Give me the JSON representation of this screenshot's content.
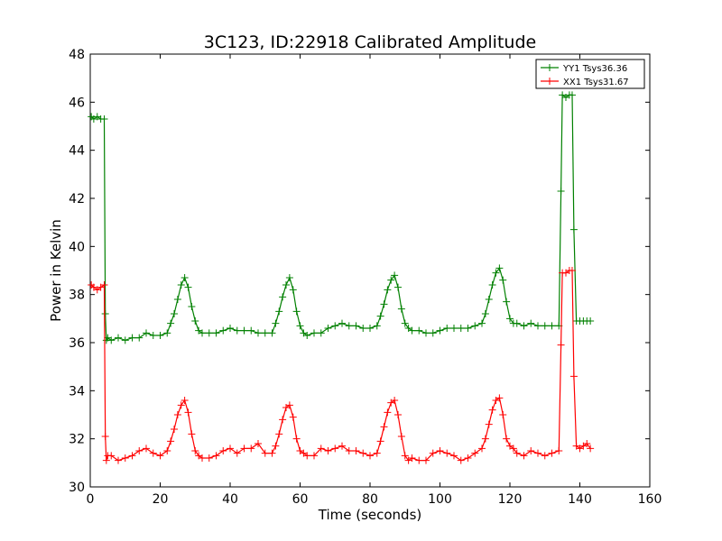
{
  "chart_data": {
    "type": "line",
    "title": "3C123, ID:22918 Calibrated Amplitude",
    "xlabel": "Time (seconds)",
    "ylabel": "Power in Kelvin",
    "xlim": [
      0,
      160
    ],
    "ylim": [
      30,
      48
    ],
    "xticks": [
      0,
      20,
      40,
      60,
      80,
      100,
      120,
      140,
      160
    ],
    "yticks": [
      30,
      32,
      34,
      36,
      38,
      40,
      42,
      44,
      46,
      48
    ],
    "grid": false,
    "legend_position": "top-right",
    "marker": "+",
    "series": [
      {
        "name": "YY1 Tsys36.36",
        "color": "#008000",
        "x": [
          0.3,
          1,
          2,
          3,
          4,
          4.3,
          4.6,
          5,
          6,
          8,
          10,
          12,
          14,
          16,
          18,
          20,
          22,
          23,
          24,
          25,
          26,
          27,
          28,
          29,
          30,
          31,
          32,
          34,
          36,
          38,
          40,
          42,
          44,
          46,
          48,
          50,
          52,
          53,
          54,
          55,
          56,
          57,
          58,
          59,
          60,
          61,
          62,
          64,
          66,
          68,
          70,
          72,
          74,
          76,
          78,
          80,
          82,
          83,
          84,
          85,
          86,
          87,
          88,
          89,
          90,
          91,
          92,
          94,
          96,
          98,
          100,
          102,
          104,
          106,
          108,
          110,
          112,
          113,
          114,
          115,
          116,
          117,
          118,
          119,
          120,
          121,
          122,
          124,
          126,
          128,
          130,
          132,
          134,
          134.6,
          135,
          136,
          137,
          137.8,
          138.3,
          139,
          140,
          141,
          142,
          143
        ],
        "values": [
          45.4,
          45.3,
          45.4,
          45.3,
          45.3,
          37.2,
          36.1,
          36.2,
          36.1,
          36.2,
          36.1,
          36.2,
          36.2,
          36.4,
          36.3,
          36.3,
          36.4,
          36.8,
          37.2,
          37.8,
          38.4,
          38.7,
          38.3,
          37.5,
          36.9,
          36.5,
          36.4,
          36.4,
          36.4,
          36.5,
          36.6,
          36.5,
          36.5,
          36.5,
          36.4,
          36.4,
          36.4,
          36.8,
          37.3,
          37.9,
          38.4,
          38.7,
          38.2,
          37.3,
          36.7,
          36.4,
          36.3,
          36.4,
          36.4,
          36.6,
          36.7,
          36.8,
          36.7,
          36.7,
          36.6,
          36.6,
          36.7,
          37.1,
          37.6,
          38.2,
          38.6,
          38.8,
          38.3,
          37.4,
          36.8,
          36.6,
          36.5,
          36.5,
          36.4,
          36.4,
          36.5,
          36.6,
          36.6,
          36.6,
          36.6,
          36.7,
          36.8,
          37.2,
          37.8,
          38.4,
          38.9,
          39.1,
          38.6,
          37.7,
          37.0,
          36.8,
          36.8,
          36.7,
          36.8,
          36.7,
          36.7,
          36.7,
          36.7,
          42.3,
          46.3,
          46.2,
          46.3,
          46.3,
          40.7,
          36.9,
          36.9,
          36.9,
          36.9,
          36.9
        ]
      },
      {
        "name": "XX1 Tsys31.67",
        "color": "#ff0000",
        "x": [
          0.3,
          1,
          2,
          3,
          4,
          4.3,
          4.6,
          5,
          6,
          8,
          10,
          12,
          14,
          16,
          18,
          20,
          22,
          23,
          24,
          25,
          26,
          27,
          28,
          29,
          30,
          31,
          32,
          34,
          36,
          38,
          40,
          42,
          44,
          46,
          48,
          50,
          52,
          53,
          54,
          55,
          56,
          57,
          58,
          59,
          60,
          61,
          62,
          64,
          66,
          68,
          70,
          72,
          74,
          76,
          78,
          80,
          82,
          83,
          84,
          85,
          86,
          87,
          88,
          89,
          90,
          91,
          92,
          94,
          96,
          98,
          100,
          102,
          104,
          106,
          108,
          110,
          112,
          113,
          114,
          115,
          116,
          117,
          118,
          119,
          120,
          121,
          122,
          124,
          126,
          128,
          130,
          132,
          134,
          134.6,
          135,
          136,
          137,
          137.8,
          138.3,
          139,
          140,
          141,
          142,
          143
        ],
        "values": [
          38.4,
          38.3,
          38.2,
          38.3,
          38.4,
          32.1,
          31.1,
          31.3,
          31.3,
          31.1,
          31.2,
          31.3,
          31.5,
          31.6,
          31.4,
          31.3,
          31.5,
          31.9,
          32.4,
          33.0,
          33.4,
          33.6,
          33.1,
          32.2,
          31.5,
          31.3,
          31.2,
          31.2,
          31.3,
          31.5,
          31.6,
          31.4,
          31.6,
          31.6,
          31.8,
          31.4,
          31.4,
          31.7,
          32.2,
          32.8,
          33.3,
          33.4,
          32.9,
          32.0,
          31.5,
          31.4,
          31.3,
          31.3,
          31.6,
          31.5,
          31.6,
          31.7,
          31.5,
          31.5,
          31.4,
          31.3,
          31.4,
          31.9,
          32.5,
          33.1,
          33.5,
          33.6,
          33.0,
          32.1,
          31.3,
          31.1,
          31.2,
          31.1,
          31.1,
          31.4,
          31.5,
          31.4,
          31.3,
          31.1,
          31.2,
          31.4,
          31.6,
          32.0,
          32.6,
          33.2,
          33.6,
          33.7,
          33.0,
          32.0,
          31.7,
          31.6,
          31.4,
          31.3,
          31.5,
          31.4,
          31.3,
          31.4,
          31.5,
          35.9,
          38.9,
          38.9,
          39.0,
          39.0,
          34.6,
          31.7,
          31.6,
          31.7,
          31.8,
          31.6
        ]
      }
    ]
  }
}
